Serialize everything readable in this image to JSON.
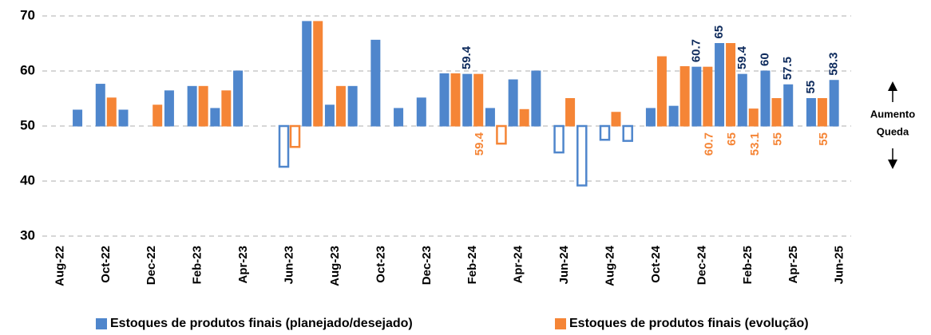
{
  "chart_data": {
    "type": "bar",
    "categories": [
      "Aug-22",
      null,
      "Oct-22",
      null,
      "Dec-22",
      null,
      "Feb-23",
      null,
      "Apr-23",
      null,
      "Jun-23",
      null,
      "Aug-23",
      null,
      "Oct-23",
      null,
      "Dec-23",
      null,
      "Feb-24",
      null,
      "Apr-24",
      null,
      "Jun-24",
      null,
      "Aug-24",
      null,
      "Oct-24",
      null,
      "Dec-24",
      null,
      "Feb-25",
      null,
      "Apr-25",
      null,
      "Jun-25"
    ],
    "series": [
      {
        "name": "Estoques de produtos finais (planejado/desejado)",
        "color": "#4f86cc",
        "label_color": "#0d2a5c",
        "values": [
          null,
          52.9,
          57.6,
          52.9,
          null,
          56.4,
          57.2,
          53.2,
          60,
          null,
          42.6,
          69,
          53.8,
          57.2,
          65.6,
          53.2,
          55.1,
          59.5,
          59.4,
          53.2,
          58.4,
          60,
          45.2,
          39.2,
          47.5,
          47.3,
          53.2,
          53.6,
          60.7,
          65,
          59.4,
          60,
          57.5,
          55,
          58.3
        ],
        "value_labels": [
          null,
          null,
          null,
          null,
          null,
          null,
          null,
          null,
          null,
          null,
          null,
          null,
          null,
          null,
          null,
          null,
          null,
          null,
          "59.4",
          null,
          null,
          null,
          null,
          null,
          null,
          null,
          null,
          null,
          "60.7",
          "65",
          "59.4",
          "60",
          "57.5",
          "55",
          "58.3"
        ]
      },
      {
        "name": "Estoques de produtos finais (evolução)",
        "color": "#f58536",
        "label_color": "#f58536",
        "values": [
          null,
          null,
          55.1,
          null,
          53.8,
          null,
          57.2,
          56.4,
          null,
          null,
          46.2,
          69,
          57.2,
          null,
          null,
          null,
          null,
          59.5,
          59.4,
          46.8,
          53,
          null,
          55,
          null,
          52.5,
          null,
          62.6,
          60.8,
          60.7,
          65,
          53.1,
          55,
          null,
          55,
          null
        ],
        "value_labels": [
          null,
          null,
          null,
          null,
          null,
          null,
          null,
          null,
          null,
          null,
          null,
          null,
          null,
          null,
          null,
          null,
          null,
          null,
          "59.4",
          null,
          null,
          null,
          null,
          null,
          null,
          null,
          null,
          null,
          "60.7",
          "65",
          "53.1",
          "55",
          null,
          "55",
          null
        ]
      }
    ],
    "ylim": [
      30,
      70
    ],
    "yticks": [
      30,
      40,
      50,
      60,
      70
    ],
    "baseline": 50,
    "grid": true,
    "legend": "bottom",
    "annotations": [
      "Aumento",
      "Queda"
    ]
  }
}
